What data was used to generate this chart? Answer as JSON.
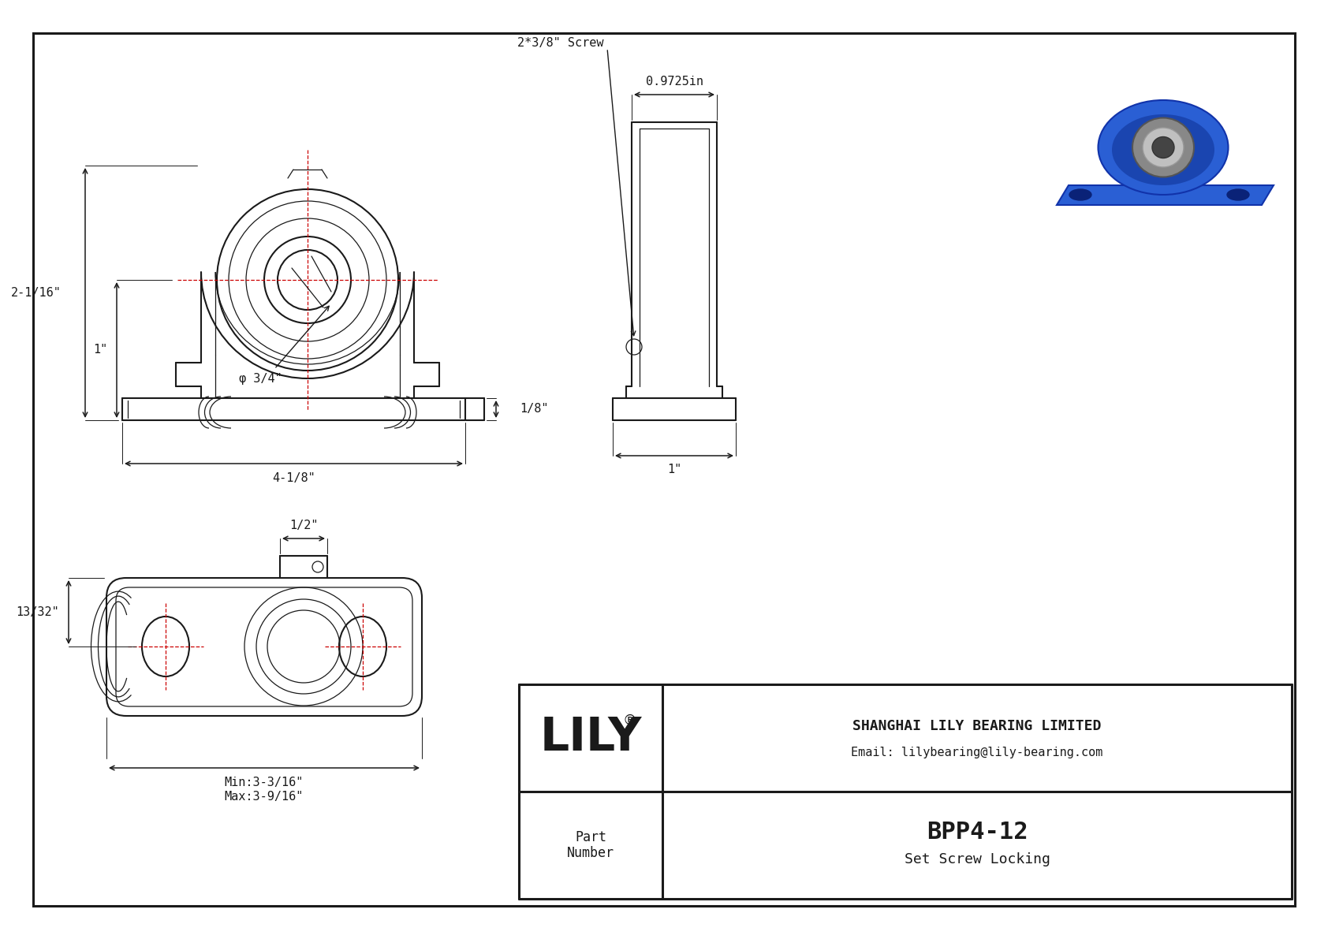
{
  "bg_color": "#ffffff",
  "line_color": "#1a1a1a",
  "red_color": "#cc0000",
  "company": "SHANGHAI LILY BEARING LIMITED",
  "email": "Email: lilybearing@lily-bearing.com",
  "part_number": "BPP4-12",
  "part_type": "Set Screw Locking",
  "logo": "LILY",
  "part_label_1": "Part",
  "part_label_2": "Number",
  "dim_41_8": "4-1/8\"",
  "dim_34": "φ 3/4\"",
  "dim_2_116": "2-1/16\"",
  "dim_1_front": "1\"",
  "dim_1_8": "1/8\"",
  "dim_09725": "0.9725in",
  "dim_screw": "2*3/8\" Screw",
  "dim_1_side": "1\"",
  "dim_half": "1/2\"",
  "dim_13_32": "13/32\"",
  "dim_min": "Min:3-3/16\"",
  "dim_max": "Max:3-9/16\""
}
